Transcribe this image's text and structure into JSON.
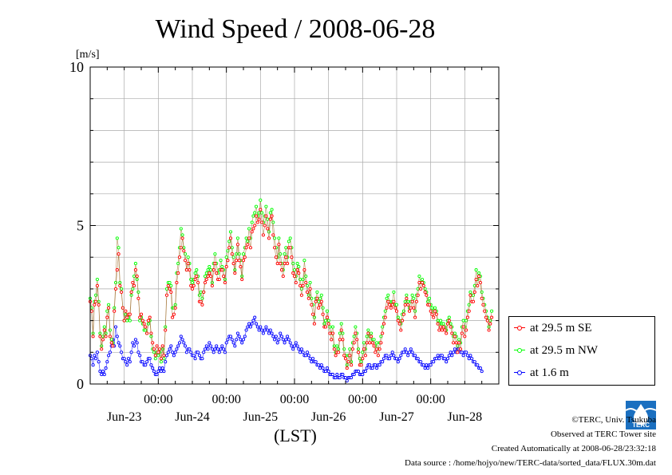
{
  "title": "Wind Speed / 2008-06-28",
  "xlabel": "(LST)",
  "credits": {
    "copyright": "©TERC, Univ. Tsukuba",
    "observed": "Observed at TERC Tower site",
    "created": "Created Automatically at 2008-06-28/23:32:18",
    "source": "Data source : /home/hojyo/new/TERC-data/sorted_data/FLUX.30m.dat"
  },
  "logo": {
    "name": "terc-logo-icon",
    "text": "TERC"
  },
  "colors": {
    "se": "#ff0000",
    "nw": "#00ff00",
    "low": "#0000ff",
    "connector": "#a07030",
    "grid": "#aaaaaa"
  },
  "chart_data": {
    "type": "line",
    "title": "Wind Speed / 2008-06-28",
    "ylabel": "[m/s]",
    "ylim": [
      0,
      10
    ],
    "yticks": [
      0,
      5,
      10
    ],
    "xlim": [
      -1,
      5
    ],
    "x_unit": "days from 2008-06-23 00:00 LST",
    "time_ticks": [
      "00:00",
      "00:00",
      "00:00",
      "00:00",
      "00:00"
    ],
    "date_ticks": [
      "Jun-23",
      "Jun-24",
      "Jun-25",
      "Jun-26",
      "Jun-27",
      "Jun-28"
    ],
    "grid": true,
    "legend_position": "right",
    "step_days": 0.0208333,
    "series": [
      {
        "name": "at 29.5 m SE",
        "color": "#ff0000",
        "values": [
          2.6,
          2.3,
          1.5,
          2.5,
          2.6,
          3.1,
          2.5,
          1.5,
          1.1,
          1.4,
          1.7,
          1.5,
          2.1,
          2.4,
          1.5,
          1.3,
          1.2,
          2.3,
          3.0,
          3.6,
          4.1,
          3.1,
          2.9,
          2.4,
          2.0,
          2.3,
          2.1,
          2.2,
          2.2,
          2.9,
          3.2,
          3.1,
          3.6,
          3.4,
          2.7,
          2.1,
          2.2,
          2.0,
          1.9,
          1.8,
          1.6,
          2.0,
          2.1,
          1.6,
          1.3,
          1.1,
          0.9,
          1.2,
          1.0,
          1.1,
          0.8,
          1.2,
          0.9,
          1.7,
          2.8,
          3.1,
          3.0,
          2.9,
          2.1,
          2.2,
          2.4,
          3.2,
          3.5,
          4.0,
          4.3,
          4.6,
          4.2,
          3.9,
          3.6,
          3.8,
          3.6,
          3.1,
          3.0,
          3.1,
          3.3,
          3.4,
          3.2,
          2.6,
          2.6,
          2.5,
          2.9,
          3.2,
          3.3,
          3.4,
          3.5,
          3.4,
          3.1,
          3.6,
          3.8,
          3.5,
          3.3,
          3.3,
          3.6,
          3.6,
          3.4,
          3.2,
          3.7,
          3.9,
          4.3,
          4.6,
          4.1,
          3.8,
          3.5,
          3.9,
          4.4,
          3.9,
          3.7,
          3.3,
          3.9,
          4.0,
          4.3,
          4.4,
          4.6,
          4.3,
          4.8,
          4.9,
          5.0,
          5.3,
          5.1,
          5.2,
          5.5,
          5.1,
          4.7,
          5.0,
          5.3,
          4.9,
          4.6,
          5.2,
          5.3,
          4.7,
          4.3,
          4.0,
          3.8,
          4.4,
          3.8,
          3.6,
          3.4,
          3.8,
          4.0,
          3.8,
          4.3,
          4.3,
          4.0,
          3.5,
          3.4,
          3.2,
          3.6,
          3.5,
          3.1,
          2.8,
          3.1,
          3.6,
          3.2,
          2.9,
          2.7,
          3.0,
          2.5,
          2.2,
          1.9,
          2.6,
          2.7,
          2.4,
          2.5,
          2.6,
          2.2,
          1.8,
          1.8,
          2.1,
          1.9,
          1.6,
          1.4,
          1.6,
          1.1,
          0.9,
          1.0,
          1.0,
          1.4,
          1.7,
          1.4,
          0.9,
          0.8,
          0.5,
          0.7,
          0.9,
          0.6,
          1.1,
          1.3,
          1.6,
          1.4,
          1.0,
          0.6,
          0.6,
          0.8,
          1.1,
          0.9,
          1.3,
          1.6,
          1.3,
          1.5,
          1.3,
          1.2,
          1.0,
          1.1,
          0.9,
          1.1,
          1.3,
          1.6,
          1.9,
          2.1,
          2.4,
          2.6,
          2.5,
          2.4,
          2.5,
          2.6,
          2.4,
          2.3,
          2.0,
          1.9,
          1.7,
          2.0,
          2.2,
          2.5,
          2.7,
          2.5,
          2.3,
          2.4,
          2.6,
          2.4,
          2.1,
          2.6,
          2.8,
          3.2,
          3.0,
          3.2,
          3.1,
          2.9,
          2.8,
          2.5,
          2.5,
          2.3,
          2.2,
          2.1,
          2.3,
          2.2,
          1.9,
          1.7,
          1.8,
          1.7,
          1.8,
          1.7,
          1.6,
          1.9,
          2.0,
          1.8,
          1.6,
          1.3,
          1.5,
          1.3,
          1.0,
          1.3,
          1.1,
          1.6,
          1.8,
          1.5,
          1.7,
          2.1,
          2.3,
          2.8,
          2.6,
          2.6,
          2.9,
          3.3,
          3.1,
          3.4,
          3.2,
          2.7,
          2.5,
          2.3,
          2.1,
          2.0,
          1.7,
          1.9,
          2.1
        ]
      },
      {
        "name": "at 29.5 m NW",
        "color": "#00ff00",
        "values": [
          2.7,
          2.4,
          1.6,
          2.6,
          2.8,
          3.3,
          2.6,
          1.6,
          1.2,
          1.5,
          1.8,
          1.6,
          2.3,
          2.5,
          1.7,
          1.4,
          1.3,
          2.4,
          3.2,
          4.6,
          4.3,
          3.2,
          3.0,
          2.4,
          2.0,
          2.2,
          2.0,
          2.1,
          2.0,
          2.8,
          3.0,
          3.4,
          3.8,
          3.3,
          2.9,
          2.0,
          2.1,
          1.9,
          1.7,
          1.7,
          1.6,
          1.9,
          2.0,
          1.5,
          1.1,
          1.0,
          0.8,
          1.0,
          0.9,
          1.0,
          0.7,
          1.1,
          0.8,
          1.8,
          3.0,
          3.2,
          3.2,
          3.1,
          2.4,
          2.4,
          2.5,
          3.5,
          3.8,
          4.3,
          4.9,
          4.7,
          4.3,
          4.1,
          3.6,
          4.0,
          3.8,
          3.3,
          3.2,
          3.3,
          3.5,
          3.6,
          3.4,
          2.8,
          2.9,
          2.7,
          2.9,
          3.4,
          3.5,
          3.6,
          3.7,
          3.6,
          3.2,
          3.8,
          4.1,
          3.8,
          3.5,
          3.6,
          3.9,
          3.7,
          3.6,
          3.3,
          4.0,
          4.2,
          4.5,
          4.8,
          4.3,
          4.0,
          3.6,
          4.1,
          4.6,
          4.1,
          3.9,
          3.4,
          4.1,
          4.3,
          4.6,
          4.5,
          4.9,
          4.6,
          5.1,
          5.3,
          5.4,
          5.6,
          5.3,
          5.4,
          5.8,
          5.4,
          5.1,
          5.3,
          5.6,
          5.2,
          4.8,
          5.4,
          5.5,
          5.1,
          4.6,
          4.3,
          4.0,
          4.6,
          4.1,
          3.8,
          3.6,
          4.1,
          4.3,
          4.0,
          4.5,
          4.6,
          4.3,
          3.8,
          3.6,
          3.4,
          3.8,
          3.7,
          3.3,
          3.0,
          3.3,
          3.9,
          3.4,
          3.1,
          2.8,
          3.2,
          2.7,
          2.5,
          2.1,
          2.7,
          2.9,
          2.6,
          2.7,
          2.8,
          2.4,
          1.9,
          2.0,
          2.3,
          2.0,
          1.8,
          1.6,
          1.8,
          1.2,
          1.0,
          1.2,
          1.1,
          1.6,
          1.9,
          1.6,
          1.1,
          0.9,
          0.6,
          0.9,
          1.1,
          0.7,
          1.3,
          1.5,
          1.8,
          1.6,
          1.1,
          0.8,
          0.7,
          1.0,
          1.3,
          1.1,
          1.5,
          1.7,
          1.5,
          1.6,
          1.4,
          1.4,
          1.2,
          1.3,
          1.1,
          1.3,
          1.5,
          1.8,
          2.1,
          2.3,
          2.7,
          2.8,
          2.6,
          2.5,
          2.6,
          2.9,
          2.5,
          2.5,
          2.1,
          2.0,
          1.9,
          2.2,
          2.3,
          2.6,
          2.8,
          2.6,
          2.4,
          2.6,
          2.8,
          2.7,
          2.3,
          2.8,
          3.0,
          3.4,
          3.2,
          3.3,
          3.2,
          3.0,
          2.9,
          2.6,
          2.7,
          2.5,
          2.4,
          2.3,
          2.4,
          2.3,
          2.0,
          1.9,
          2.0,
          1.9,
          1.9,
          1.8,
          1.7,
          2.0,
          2.1,
          1.9,
          1.8,
          1.5,
          1.6,
          1.5,
          1.2,
          1.4,
          1.3,
          1.8,
          2.0,
          1.8,
          2.0,
          2.3,
          2.5,
          2.9,
          2.8,
          2.8,
          3.1,
          3.6,
          3.3,
          3.5,
          3.4,
          2.9,
          2.7,
          2.5,
          2.3,
          2.1,
          1.8,
          2.0,
          2.3
        ]
      },
      {
        "name": "at 1.6 m",
        "color": "#0000ff",
        "values": [
          0.9,
          0.8,
          0.6,
          0.9,
          0.8,
          1.0,
          0.7,
          0.4,
          0.3,
          0.4,
          0.3,
          0.5,
          0.7,
          0.9,
          1.0,
          1.2,
          1.4,
          1.2,
          1.8,
          1.5,
          1.3,
          1.2,
          1.0,
          0.8,
          0.8,
          0.7,
          0.6,
          0.8,
          0.7,
          1.0,
          1.3,
          1.2,
          1.4,
          1.3,
          1.0,
          0.9,
          0.7,
          0.7,
          0.6,
          0.6,
          0.7,
          0.8,
          0.8,
          0.6,
          0.5,
          0.4,
          0.3,
          0.3,
          0.4,
          0.5,
          0.4,
          0.5,
          0.4,
          0.7,
          0.9,
          1.0,
          1.1,
          1.2,
          1.0,
          0.9,
          1.0,
          1.1,
          1.2,
          1.3,
          1.5,
          1.4,
          1.3,
          1.2,
          1.0,
          1.1,
          1.1,
          1.0,
          0.9,
          0.9,
          0.8,
          1.0,
          1.0,
          0.9,
          0.8,
          0.8,
          1.0,
          1.1,
          1.2,
          1.1,
          1.3,
          1.2,
          1.1,
          1.0,
          1.1,
          1.2,
          1.1,
          1.0,
          1.1,
          1.2,
          1.1,
          1.0,
          1.3,
          1.4,
          1.5,
          1.5,
          1.4,
          1.3,
          1.2,
          1.4,
          1.6,
          1.5,
          1.4,
          1.3,
          1.4,
          1.5,
          1.7,
          1.8,
          1.9,
          1.8,
          1.9,
          2.0,
          2.1,
          1.9,
          1.8,
          1.7,
          1.8,
          1.7,
          1.6,
          1.7,
          1.8,
          1.7,
          1.6,
          1.7,
          1.6,
          1.5,
          1.4,
          1.5,
          1.3,
          1.4,
          1.6,
          1.5,
          1.4,
          1.3,
          1.4,
          1.5,
          1.4,
          1.3,
          1.2,
          1.1,
          1.2,
          1.3,
          1.2,
          1.1,
          1.0,
          1.1,
          1.0,
          0.9,
          0.9,
          1.0,
          0.9,
          0.8,
          0.7,
          0.8,
          0.7,
          0.7,
          0.6,
          0.6,
          0.5,
          0.6,
          0.5,
          0.4,
          0.4,
          0.5,
          0.4,
          0.3,
          0.3,
          0.3,
          0.2,
          0.2,
          0.3,
          0.2,
          0.2,
          0.3,
          0.3,
          0.2,
          0.2,
          0.1,
          0.2,
          0.2,
          0.2,
          0.3,
          0.3,
          0.4,
          0.4,
          0.4,
          0.3,
          0.3,
          0.3,
          0.4,
          0.4,
          0.5,
          0.6,
          0.6,
          0.5,
          0.5,
          0.6,
          0.6,
          0.5,
          0.6,
          0.6,
          0.7,
          0.7,
          0.8,
          0.9,
          0.9,
          0.8,
          0.8,
          0.9,
          1.0,
          0.9,
          0.8,
          0.8,
          0.7,
          0.8,
          0.9,
          1.0,
          1.0,
          1.1,
          1.0,
          0.9,
          1.0,
          1.1,
          1.0,
          0.9,
          0.9,
          0.8,
          0.8,
          0.7,
          0.7,
          0.6,
          0.6,
          0.5,
          0.6,
          0.5,
          0.6,
          0.6,
          0.7,
          0.7,
          0.8,
          0.8,
          0.9,
          0.8,
          0.9,
          0.9,
          0.8,
          0.8,
          0.7,
          0.8,
          0.9,
          1.0,
          0.9,
          1.0,
          1.1,
          1.0,
          1.1,
          1.1,
          1.0,
          1.0,
          0.9,
          1.0,
          1.0,
          0.9,
          0.8,
          0.9,
          0.8,
          0.7,
          0.7,
          0.6,
          0.6,
          0.5,
          0.5,
          0.4
        ]
      }
    ]
  }
}
